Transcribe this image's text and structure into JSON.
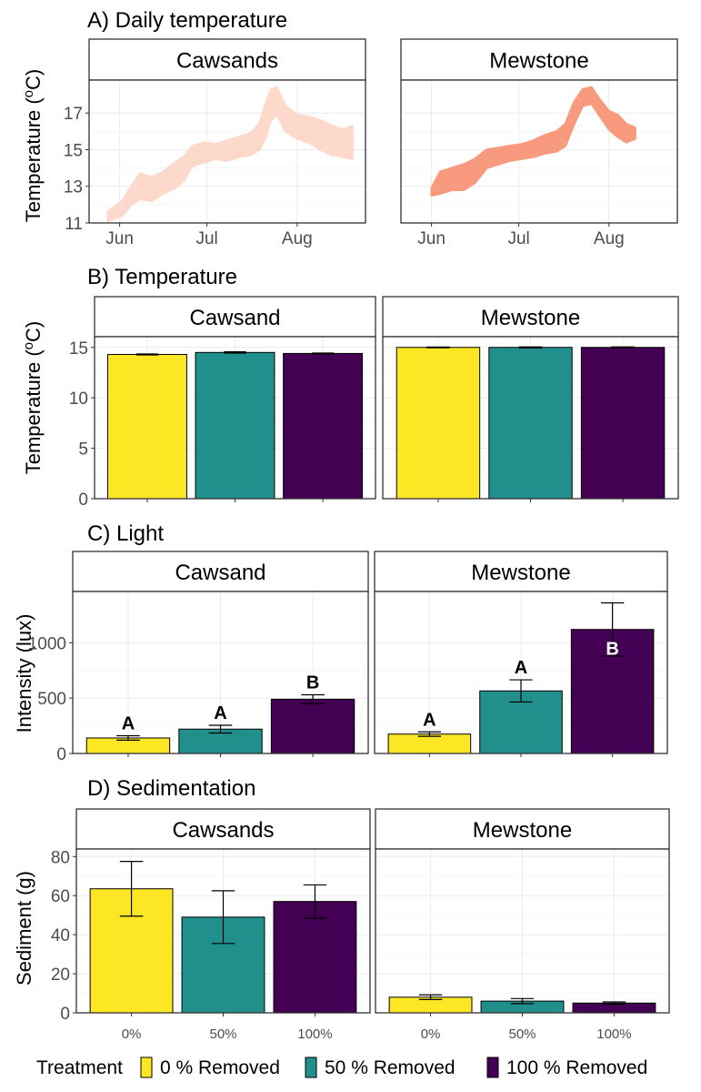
{
  "legend": {
    "title": "Treatment",
    "entries": [
      {
        "label": "0 % Removed",
        "color": "#FDE725"
      },
      {
        "label": "50 % Removed",
        "color": "#21908C"
      },
      {
        "label": "100 % Removed",
        "color": "#440154"
      }
    ]
  },
  "chart_data": [
    {
      "type": "line",
      "title": "A) Daily temperature",
      "ylabel": "Temperature (°C)",
      "xlabel": "",
      "ylim": [
        11,
        18.6
      ],
      "yticks": [
        11,
        13,
        15,
        17
      ],
      "xlim": [
        "2019-05-24",
        "2019-08-22"
      ],
      "xticks": [
        {
          "label": "Jun",
          "date": "2019-06-01"
        },
        {
          "label": "Jul",
          "date": "2019-07-01"
        },
        {
          "label": "Aug",
          "date": "2019-08-01"
        }
      ],
      "grid": true,
      "facets": [
        {
          "name": "Cawsands",
          "color": "#FDD9CC",
          "series": [
            {
              "x": "2019-05-28",
              "low": 11.1,
              "high": 11.6
            },
            {
              "x": "2019-06-02",
              "low": 11.4,
              "high": 12.2
            },
            {
              "x": "2019-06-05",
              "low": 12.0,
              "high": 13.0
            },
            {
              "x": "2019-06-08",
              "low": 12.3,
              "high": 13.7
            },
            {
              "x": "2019-06-12",
              "low": 12.2,
              "high": 13.5
            },
            {
              "x": "2019-06-16",
              "low": 12.6,
              "high": 13.8
            },
            {
              "x": "2019-06-20",
              "low": 12.9,
              "high": 14.3
            },
            {
              "x": "2019-06-23",
              "low": 13.3,
              "high": 14.6
            },
            {
              "x": "2019-06-26",
              "low": 14.1,
              "high": 15.2
            },
            {
              "x": "2019-06-30",
              "low": 14.3,
              "high": 15.4
            },
            {
              "x": "2019-07-04",
              "low": 14.5,
              "high": 15.3
            },
            {
              "x": "2019-07-08",
              "low": 14.4,
              "high": 15.5
            },
            {
              "x": "2019-07-12",
              "low": 14.6,
              "high": 15.7
            },
            {
              "x": "2019-07-16",
              "low": 14.7,
              "high": 15.9
            },
            {
              "x": "2019-07-19",
              "low": 15.0,
              "high": 16.4
            },
            {
              "x": "2019-07-21",
              "low": 15.6,
              "high": 17.4
            },
            {
              "x": "2019-07-23",
              "low": 16.6,
              "high": 18.3
            },
            {
              "x": "2019-07-25",
              "low": 16.9,
              "high": 18.4
            },
            {
              "x": "2019-07-28",
              "low": 16.0,
              "high": 17.4
            },
            {
              "x": "2019-08-01",
              "low": 15.6,
              "high": 16.9
            },
            {
              "x": "2019-08-05",
              "low": 15.4,
              "high": 16.8
            },
            {
              "x": "2019-08-09",
              "low": 15.0,
              "high": 16.6
            },
            {
              "x": "2019-08-13",
              "low": 14.7,
              "high": 16.3
            },
            {
              "x": "2019-08-17",
              "low": 14.6,
              "high": 16.1
            },
            {
              "x": "2019-08-20",
              "low": 14.5,
              "high": 16.3
            }
          ]
        },
        {
          "name": "Mewstone",
          "color": "#F79A7E",
          "series": [
            {
              "x": "2019-06-01",
              "low": 12.5,
              "high": 12.9
            },
            {
              "x": "2019-06-04",
              "low": 12.6,
              "high": 13.8
            },
            {
              "x": "2019-06-08",
              "low": 12.8,
              "high": 14.0
            },
            {
              "x": "2019-06-12",
              "low": 12.8,
              "high": 14.2
            },
            {
              "x": "2019-06-16",
              "low": 13.2,
              "high": 14.5
            },
            {
              "x": "2019-06-20",
              "low": 14.0,
              "high": 15.0
            },
            {
              "x": "2019-06-24",
              "low": 14.2,
              "high": 15.1
            },
            {
              "x": "2019-06-28",
              "low": 14.4,
              "high": 15.2
            },
            {
              "x": "2019-07-02",
              "low": 14.5,
              "high": 15.3
            },
            {
              "x": "2019-07-06",
              "low": 14.6,
              "high": 15.5
            },
            {
              "x": "2019-07-10",
              "low": 14.8,
              "high": 15.8
            },
            {
              "x": "2019-07-14",
              "low": 14.9,
              "high": 16.0
            },
            {
              "x": "2019-07-17",
              "low": 15.2,
              "high": 16.4
            },
            {
              "x": "2019-07-20",
              "low": 16.4,
              "high": 17.6
            },
            {
              "x": "2019-07-23",
              "low": 17.4,
              "high": 18.3
            },
            {
              "x": "2019-07-26",
              "low": 17.5,
              "high": 18.4
            },
            {
              "x": "2019-07-29",
              "low": 16.8,
              "high": 17.7
            },
            {
              "x": "2019-08-01",
              "low": 16.1,
              "high": 17.1
            },
            {
              "x": "2019-08-04",
              "low": 15.7,
              "high": 16.9
            },
            {
              "x": "2019-08-07",
              "low": 15.4,
              "high": 16.4
            },
            {
              "x": "2019-08-10",
              "low": 15.6,
              "high": 16.2
            }
          ]
        }
      ]
    },
    {
      "type": "bar",
      "title": "B) Temperature",
      "ylabel": "Temperature (°C)",
      "ylim": [
        0,
        15.7
      ],
      "yticks": [
        0,
        5,
        10,
        15
      ],
      "categories": [
        "0%",
        "50%",
        "100%"
      ],
      "show_xlabels": false,
      "facets": [
        {
          "name": "Cawsand",
          "values": [
            14.3,
            14.5,
            14.4
          ],
          "err": [
            0.05,
            0.06,
            0.04
          ],
          "sig": [
            "",
            "",
            ""
          ]
        },
        {
          "name": "Mewstone",
          "values": [
            15.0,
            15.0,
            15.0
          ],
          "err": [
            0.04,
            0.05,
            0.05
          ],
          "sig": [
            "",
            "",
            ""
          ]
        }
      ]
    },
    {
      "type": "bar",
      "title": "C) Light",
      "ylabel": "Intensity (lux)",
      "ylim": [
        0,
        1430
      ],
      "yticks": [
        0,
        500,
        1000
      ],
      "categories": [
        "0%",
        "50%",
        "100%"
      ],
      "show_xlabels": false,
      "facets": [
        {
          "name": "Cawsand",
          "values": [
            140,
            220,
            490
          ],
          "err": [
            20,
            35,
            40
          ],
          "sig": [
            "A",
            "A",
            "B"
          ]
        },
        {
          "name": "Mewstone",
          "values": [
            175,
            565,
            1120
          ],
          "err": [
            20,
            100,
            240
          ],
          "sig": [
            "A",
            "A",
            "B"
          ]
        }
      ]
    },
    {
      "type": "bar",
      "title": "D) Sedimentation",
      "ylabel": "Sediment (g)",
      "ylim": [
        0,
        82
      ],
      "yticks": [
        0,
        20,
        40,
        60,
        80
      ],
      "categories": [
        "0%",
        "50%",
        "100%"
      ],
      "show_xlabels": true,
      "facets": [
        {
          "name": "Cawsands",
          "values": [
            63.5,
            49,
            57
          ],
          "err": [
            14,
            13.5,
            8.5
          ],
          "sig": [
            "",
            "",
            ""
          ]
        },
        {
          "name": "Mewstone",
          "values": [
            8,
            6,
            5
          ],
          "err": [
            1.2,
            1.3,
            0.6
          ],
          "sig": [
            "",
            "",
            ""
          ]
        }
      ]
    }
  ]
}
